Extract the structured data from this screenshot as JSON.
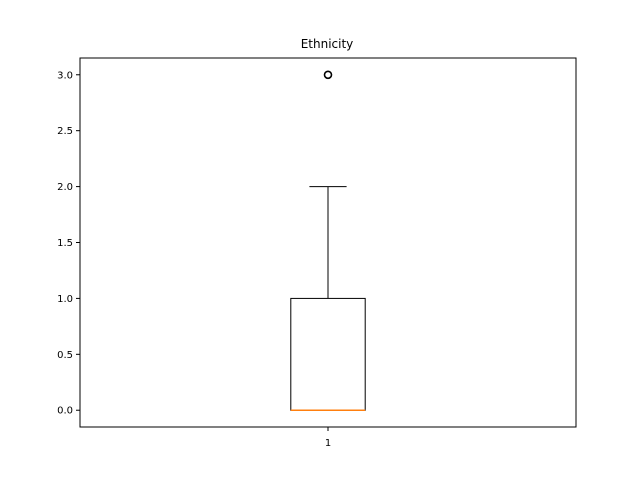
{
  "chart_data": {
    "type": "box",
    "title": "Ethnicity",
    "xlabel": "",
    "ylabel": "",
    "categories": [
      "1"
    ],
    "boxes": [
      {
        "category": "1",
        "whisker_low": 0.0,
        "q1": 0.0,
        "median": 0.0,
        "q3": 1.0,
        "whisker_high": 2.0,
        "outliers": [
          3.0
        ]
      }
    ],
    "ylim": [
      -0.15,
      3.15
    ],
    "yticks": [
      "0.0",
      "0.5",
      "1.0",
      "1.5",
      "2.0",
      "2.5",
      "3.0"
    ],
    "grid": false,
    "colors": {
      "median": "#ff7f0e",
      "box": "#000000",
      "outlier": "#000000"
    }
  }
}
